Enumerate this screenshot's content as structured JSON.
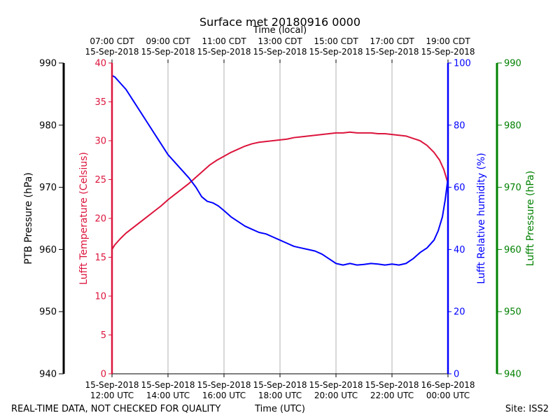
{
  "chart_data": {
    "type": "line",
    "title": "Surface met 20180916 0000",
    "top_axis_label": "Time (local)",
    "bottom_axis_label": "Time (UTC)",
    "footer_left": "REAL-TIME DATA, NOT CHECKED FOR QUALITY",
    "footer_right": "Site: ISS2",
    "x_range_hours": [
      12,
      24
    ],
    "gridlines": "vertical",
    "x_ticks_bottom": [
      {
        "hour": 12,
        "line1": "15-Sep-2018",
        "line2": "12:00 UTC"
      },
      {
        "hour": 14,
        "line1": "15-Sep-2018",
        "line2": "14:00 UTC"
      },
      {
        "hour": 16,
        "line1": "15-Sep-2018",
        "line2": "16:00 UTC"
      },
      {
        "hour": 18,
        "line1": "15-Sep-2018",
        "line2": "18:00 UTC"
      },
      {
        "hour": 20,
        "line1": "15-Sep-2018",
        "line2": "20:00 UTC"
      },
      {
        "hour": 22,
        "line1": "15-Sep-2018",
        "line2": "22:00 UTC"
      },
      {
        "hour": 24,
        "line1": "16-Sep-2018",
        "line2": "00:00 UTC"
      }
    ],
    "x_ticks_top": [
      {
        "hour": 12,
        "line1": "07:00 CDT",
        "line2": "15-Sep-2018"
      },
      {
        "hour": 14,
        "line1": "09:00 CDT",
        "line2": "15-Sep-2018"
      },
      {
        "hour": 16,
        "line1": "11:00 CDT",
        "line2": "15-Sep-2018"
      },
      {
        "hour": 18,
        "line1": "13:00 CDT",
        "line2": "15-Sep-2018"
      },
      {
        "hour": 20,
        "line1": "15:00 CDT",
        "line2": "15-Sep-2018"
      },
      {
        "hour": 22,
        "line1": "17:00 CDT",
        "line2": "15-Sep-2018"
      },
      {
        "hour": 24,
        "line1": "19:00 CDT",
        "line2": "15-Sep-2018"
      }
    ],
    "axes": {
      "ptb_pressure": {
        "label": "PTB Pressure (hPa)",
        "range": [
          940,
          990
        ],
        "ticks": [
          940,
          950,
          960,
          970,
          980,
          990
        ],
        "color": "#000000"
      },
      "temperature": {
        "label": "Lufft Temperature (Celsius)",
        "range": [
          0,
          40
        ],
        "ticks": [
          0,
          5,
          10,
          15,
          20,
          25,
          30,
          35,
          40
        ],
        "color": "#dc143c"
      },
      "humidity": {
        "label": "Lufft Relative humidity (%)",
        "range": [
          0,
          100
        ],
        "ticks": [
          0,
          20,
          40,
          60,
          80,
          100
        ],
        "color": "#0000ff"
      },
      "lufft_pressure": {
        "label": "Lufft Pressure (hPa)",
        "range": [
          940,
          990
        ],
        "ticks": [
          940,
          950,
          960,
          970,
          980,
          990
        ],
        "color": "#008000"
      }
    },
    "series": [
      {
        "name": "Lufft Temperature",
        "axis": "temperature",
        "color": "#dc143c",
        "x": [
          12.0,
          12.1,
          12.3,
          12.5,
          12.75,
          13.0,
          13.25,
          13.5,
          13.75,
          14.0,
          14.25,
          14.5,
          14.75,
          15.0,
          15.25,
          15.5,
          15.75,
          16.0,
          16.25,
          16.5,
          16.75,
          17.0,
          17.25,
          17.5,
          17.75,
          18.0,
          18.25,
          18.5,
          18.75,
          19.0,
          19.25,
          19.5,
          19.75,
          20.0,
          20.25,
          20.5,
          20.75,
          21.0,
          21.25,
          21.5,
          21.75,
          22.0,
          22.25,
          22.5,
          22.75,
          23.0,
          23.25,
          23.5,
          23.7,
          23.85,
          24.0
        ],
        "values": [
          16.0,
          16.6,
          17.4,
          18.1,
          18.8,
          19.5,
          20.2,
          20.9,
          21.6,
          22.4,
          23.1,
          23.8,
          24.5,
          25.3,
          26.1,
          26.9,
          27.5,
          28.0,
          28.5,
          28.9,
          29.3,
          29.6,
          29.8,
          29.9,
          30.0,
          30.1,
          30.2,
          30.4,
          30.5,
          30.6,
          30.7,
          30.8,
          30.9,
          31.0,
          31.0,
          31.1,
          31.0,
          31.0,
          31.0,
          30.9,
          30.9,
          30.8,
          30.7,
          30.6,
          30.3,
          30.0,
          29.4,
          28.5,
          27.5,
          26.3,
          24.5
        ]
      },
      {
        "name": "Lufft Relative humidity",
        "axis": "humidity",
        "color": "#0000ff",
        "x": [
          12.0,
          12.1,
          12.25,
          12.5,
          12.75,
          13.0,
          13.25,
          13.5,
          13.75,
          14.0,
          14.25,
          14.5,
          14.75,
          15.0,
          15.2,
          15.4,
          15.6,
          15.8,
          16.0,
          16.25,
          16.5,
          16.75,
          17.0,
          17.25,
          17.5,
          17.75,
          18.0,
          18.25,
          18.5,
          18.75,
          19.0,
          19.25,
          19.5,
          19.75,
          20.0,
          20.25,
          20.5,
          20.75,
          21.0,
          21.25,
          21.5,
          21.75,
          22.0,
          22.25,
          22.5,
          22.75,
          23.0,
          23.25,
          23.5,
          23.65,
          23.8,
          23.9,
          24.0
        ],
        "values": [
          96.0,
          95.5,
          94.0,
          91.5,
          88.0,
          84.5,
          81.0,
          77.5,
          74.0,
          70.5,
          68.0,
          65.5,
          63.0,
          60.0,
          57.0,
          55.5,
          55.0,
          54.0,
          52.5,
          50.5,
          49.0,
          47.5,
          46.5,
          45.5,
          45.0,
          44.0,
          43.0,
          42.0,
          41.0,
          40.5,
          40.0,
          39.5,
          38.5,
          37.0,
          35.5,
          35.0,
          35.5,
          35.0,
          35.2,
          35.5,
          35.3,
          35.0,
          35.3,
          35.0,
          35.5,
          37.0,
          39.0,
          40.5,
          43.0,
          46.0,
          50.5,
          56.0,
          63.0
        ]
      }
    ]
  }
}
